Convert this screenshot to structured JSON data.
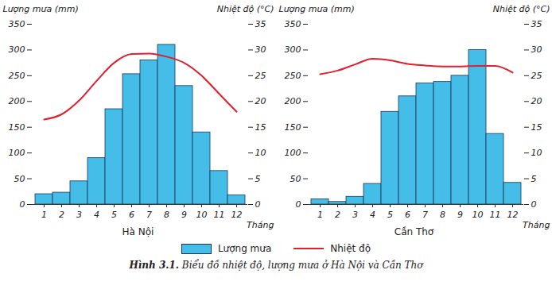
{
  "caption": "Hình 3.1. Biểu đồ nhiệt độ, lượng mưa ở Hà Nội và Cần Thơ",
  "chart_data": [
    {
      "type": "bar",
      "title": "Hà Nội",
      "x_label": "Tháng",
      "y_label": "Lượng mưa (mm)",
      "y2_label": "Nhiệt độ (°C)",
      "categories": [
        1,
        2,
        3,
        4,
        5,
        6,
        7,
        8,
        9,
        10,
        11,
        12
      ],
      "series": [
        {
          "name": "Lượng mưa",
          "type": "bar",
          "color": "#45bde9",
          "values": [
            20,
            23,
            45,
            90,
            185,
            253,
            280,
            310,
            230,
            140,
            65,
            18
          ]
        },
        {
          "name": "Nhiệt độ",
          "type": "line",
          "color": "#e0202e",
          "axis": "y2",
          "values": [
            16.5,
            17.5,
            20.2,
            24,
            27.5,
            29.2,
            29.3,
            28.7,
            27.5,
            25,
            21.5,
            18
          ]
        }
      ],
      "ylim": [
        0,
        350
      ],
      "yticks": [
        0,
        50,
        100,
        150,
        200,
        250,
        300,
        350
      ],
      "y2lim": [
        0,
        35
      ],
      "y2ticks": [
        0,
        5,
        10,
        15,
        20,
        25,
        30,
        35
      ],
      "grid": false,
      "legend": "bottom"
    },
    {
      "type": "bar",
      "title": "Cần Thơ",
      "x_label": "Tháng",
      "y_label": "Lượng mưa (mm)",
      "y2_label": "Nhiệt độ (°C)",
      "categories": [
        1,
        2,
        3,
        4,
        5,
        6,
        7,
        8,
        9,
        10,
        11,
        12
      ],
      "series": [
        {
          "name": "Lượng mưa",
          "type": "bar",
          "color": "#45bde9",
          "values": [
            10,
            5,
            15,
            40,
            180,
            210,
            235,
            238,
            250,
            300,
            137,
            42
          ]
        },
        {
          "name": "Nhiệt độ",
          "type": "line",
          "color": "#e0202e",
          "axis": "y2",
          "values": [
            25.3,
            26,
            27.2,
            28.3,
            28,
            27.3,
            27,
            26.8,
            26.8,
            26.9,
            26.9,
            25.6
          ]
        }
      ],
      "ylim": [
        0,
        350
      ],
      "yticks": [
        0,
        50,
        100,
        150,
        200,
        250,
        300,
        350
      ],
      "y2lim": [
        0,
        35
      ],
      "y2ticks": [
        0,
        5,
        10,
        15,
        20,
        25,
        30,
        35
      ],
      "grid": false,
      "legend": "bottom"
    }
  ]
}
